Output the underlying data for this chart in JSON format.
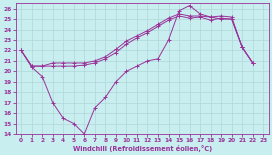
{
  "bg_color": "#c8eef0",
  "grid_color": "#b0d8d8",
  "line_color": "#993399",
  "xlabel": "Windchill (Refroidissement éolien,°C)",
  "xlabel_color": "#993399",
  "tick_color": "#993399",
  "xlim": [
    -0.5,
    23.5
  ],
  "ylim": [
    14,
    26.5
  ],
  "xticks": [
    0,
    1,
    2,
    3,
    4,
    5,
    6,
    7,
    8,
    9,
    10,
    11,
    12,
    13,
    14,
    15,
    16,
    17,
    18,
    19,
    20,
    21,
    22,
    23
  ],
  "yticks": [
    14,
    15,
    16,
    17,
    18,
    19,
    20,
    21,
    22,
    23,
    24,
    25,
    26
  ],
  "line1_x": [
    0,
    1,
    2,
    3,
    4,
    5,
    6,
    7,
    8,
    9,
    10,
    11,
    12,
    13,
    14,
    15,
    16,
    17,
    18,
    19,
    20,
    21,
    22
  ],
  "line1_y": [
    22,
    20.4,
    19.5,
    17,
    15.5,
    15,
    14,
    16.5,
    17.5,
    19.0,
    20.0,
    20.5,
    21.0,
    21.2,
    23.0,
    25.8,
    26.3,
    25.5,
    25.2,
    25.0,
    25.0,
    22.3,
    20.8
  ],
  "line2_x": [
    0,
    1,
    2,
    3,
    4,
    5,
    6,
    7,
    8,
    9,
    10,
    11,
    12,
    13,
    14,
    15,
    16,
    17,
    18,
    19,
    20,
    21,
    22
  ],
  "line2_y": [
    22,
    20.5,
    20.5,
    20.5,
    20.5,
    20.5,
    20.6,
    20.8,
    21.2,
    21.8,
    22.6,
    23.2,
    23.7,
    24.3,
    24.9,
    25.3,
    25.1,
    25.2,
    24.9,
    25.1,
    25.0,
    22.3,
    20.8
  ],
  "line3_x": [
    0,
    1,
    2,
    3,
    4,
    5,
    6,
    7,
    8,
    9,
    10,
    11,
    12,
    13,
    14,
    15,
    16,
    17,
    18,
    19,
    20,
    21,
    22
  ],
  "line3_y": [
    22,
    20.5,
    20.5,
    20.8,
    20.8,
    20.8,
    20.8,
    21.0,
    21.4,
    22.1,
    22.9,
    23.4,
    23.9,
    24.5,
    25.1,
    25.5,
    25.3,
    25.3,
    25.2,
    25.3,
    25.2,
    22.3,
    20.8
  ]
}
